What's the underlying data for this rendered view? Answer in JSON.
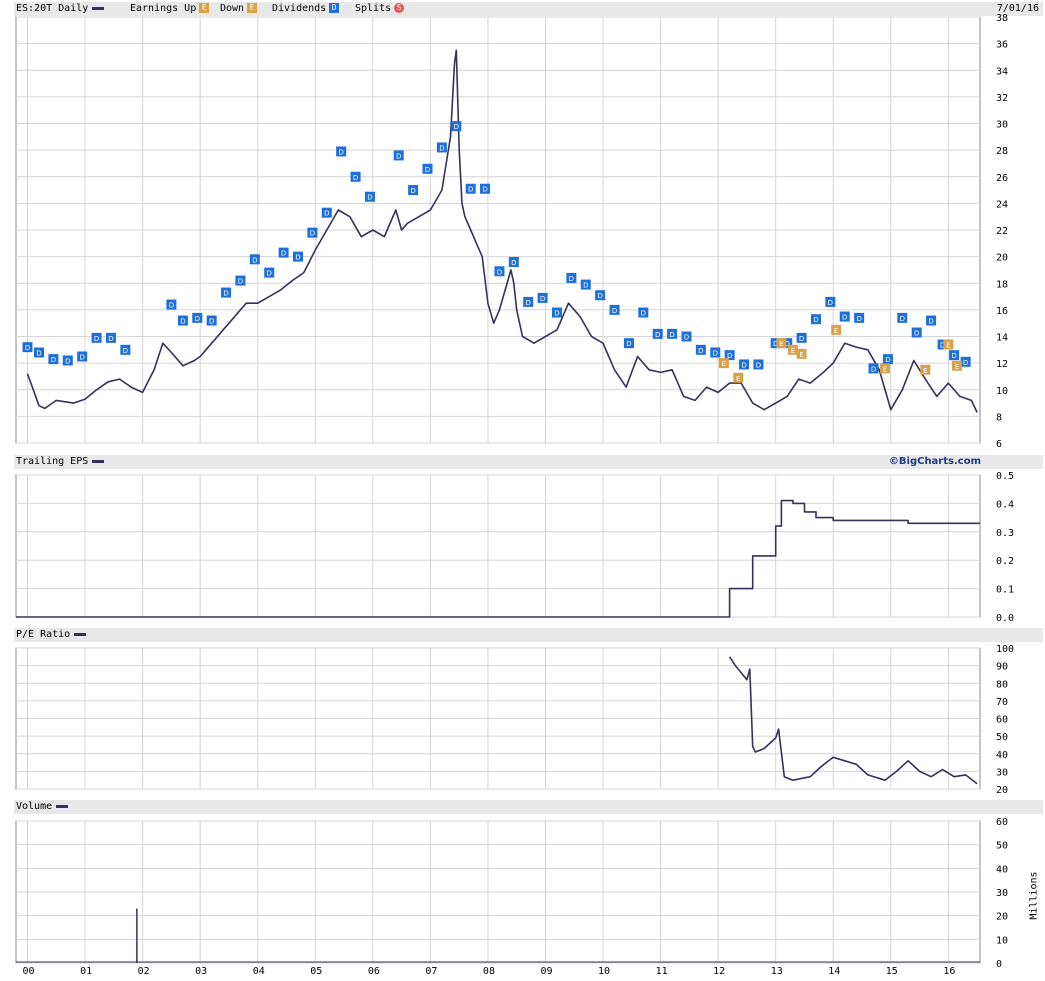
{
  "header": {
    "symbol_label": "ES:20T Daily",
    "earnings_up_label": "Earnings Up",
    "down_label": "Down",
    "dividends_label": "Dividends",
    "splits_label": "Splits",
    "date": "7/01/16",
    "earnings_icon_letter": "E",
    "dividend_icon_letter": "D",
    "split_icon_letter": "S"
  },
  "panels": {
    "eps_title": "Trailing EPS",
    "pe_title": "P/E Ratio",
    "volume_title": "Volume",
    "brand": "©BigCharts.com",
    "volume_unit": "Millions"
  },
  "colors": {
    "line": "#33335a",
    "dividend_marker": "#1e6fd9",
    "earnings_marker": "#d9a24a",
    "split_marker": "#e05555",
    "header_bg": "#e8e8e8",
    "grid": "#d4d4d4"
  },
  "chart_data": [
    {
      "type": "line",
      "title": "ES:20T Daily",
      "x_tick_labels": [
        "00",
        "01",
        "02",
        "03",
        "04",
        "05",
        "06",
        "07",
        "08",
        "09",
        "10",
        "11",
        "12",
        "13",
        "14",
        "15",
        "16"
      ],
      "y_ticks": [
        6,
        8,
        10,
        12,
        14,
        16,
        18,
        20,
        22,
        24,
        26,
        28,
        30,
        32,
        34,
        36,
        38
      ],
      "ylim": [
        6,
        38
      ],
      "xlim": [
        1999.8,
        2016.55
      ],
      "grid": true,
      "series": [
        {
          "x": [
            2000.0,
            2000.1,
            2000.2,
            2000.3,
            2000.5,
            2000.8,
            2001.0,
            2001.2,
            2001.4,
            2001.6,
            2001.8,
            2002.0,
            2002.2,
            2002.35,
            2002.5,
            2002.7,
            2002.9,
            2003.0,
            2003.2,
            2003.4,
            2003.6,
            2003.8,
            2004.0,
            2004.2,
            2004.4,
            2004.6,
            2004.8,
            2005.0,
            2005.2,
            2005.4,
            2005.6,
            2005.8,
            2006.0,
            2006.2,
            2006.4,
            2006.5,
            2006.6,
            2006.8,
            2007.0,
            2007.2,
            2007.35,
            2007.42,
            2007.45,
            2007.5,
            2007.55,
            2007.6,
            2007.7,
            2007.8,
            2007.9,
            2008.0,
            2008.1,
            2008.2,
            2008.3,
            2008.4,
            2008.45,
            2008.5,
            2008.6,
            2008.8,
            2009.0,
            2009.2,
            2009.4,
            2009.6,
            2009.8,
            2010.0,
            2010.2,
            2010.4,
            2010.6,
            2010.8,
            2011.0,
            2011.2,
            2011.4,
            2011.6,
            2011.8,
            2012.0,
            2012.2,
            2012.4,
            2012.6,
            2012.8,
            2013.0,
            2013.2,
            2013.4,
            2013.6,
            2013.8,
            2014.0,
            2014.2,
            2014.4,
            2014.6,
            2014.8,
            2015.0,
            2015.2,
            2015.4,
            2015.6,
            2015.8,
            2016.0,
            2016.2,
            2016.4,
            2016.5
          ],
          "y": [
            11.2,
            10.0,
            8.8,
            8.6,
            9.2,
            9.0,
            9.3,
            10.0,
            10.6,
            10.8,
            10.2,
            9.8,
            11.5,
            13.5,
            12.8,
            11.8,
            12.2,
            12.5,
            13.5,
            14.5,
            15.5,
            16.5,
            16.5,
            17.0,
            17.5,
            18.2,
            18.8,
            20.5,
            22.0,
            23.5,
            23.0,
            21.5,
            22.0,
            21.5,
            23.5,
            22.0,
            22.5,
            23.0,
            23.5,
            25.0,
            29.0,
            34.5,
            35.5,
            28.0,
            24.0,
            23.0,
            22.0,
            21.0,
            20.0,
            16.5,
            15.0,
            16.0,
            17.5,
            19.0,
            18.0,
            16.0,
            14.0,
            13.5,
            14.0,
            14.5,
            16.5,
            15.5,
            14.0,
            13.5,
            11.5,
            10.2,
            12.5,
            11.5,
            11.3,
            11.5,
            9.5,
            9.2,
            10.2,
            9.8,
            10.5,
            10.5,
            9.0,
            8.5,
            9.0,
            9.5,
            10.8,
            10.5,
            11.2,
            12.0,
            13.5,
            13.2,
            13.0,
            11.5,
            8.5,
            10.0,
            12.2,
            10.8,
            9.5,
            10.5,
            9.5,
            9.2,
            8.3
          ]
        }
      ]
    },
    {
      "type": "line",
      "title": "Trailing EPS",
      "y_ticks": [
        0.0,
        0.1,
        0.2,
        0.3,
        0.4,
        0.5
      ],
      "ylim": [
        0.0,
        0.5
      ],
      "xlim": [
        1999.8,
        2016.55
      ],
      "grid": true,
      "series": [
        {
          "x": [
            1999.8,
            2012.2,
            2012.2,
            2012.6,
            2012.6,
            2013.0,
            2013.0,
            2013.1,
            2013.1,
            2013.3,
            2013.3,
            2013.5,
            2013.5,
            2013.7,
            2013.7,
            2014.0,
            2014.0,
            2015.0,
            2015.0,
            2015.3,
            2015.3,
            2016.55
          ],
          "y": [
            0.0,
            0.0,
            0.1,
            0.1,
            0.215,
            0.215,
            0.32,
            0.32,
            0.41,
            0.41,
            0.4,
            0.4,
            0.37,
            0.37,
            0.35,
            0.35,
            0.34,
            0.34,
            0.34,
            0.34,
            0.33,
            0.33
          ]
        }
      ]
    },
    {
      "type": "line",
      "title": "P/E Ratio",
      "y_ticks": [
        20,
        30,
        40,
        50,
        60,
        70,
        80,
        90,
        100
      ],
      "ylim": [
        20,
        100
      ],
      "xlim": [
        1999.8,
        2016.55
      ],
      "grid": true,
      "series": [
        {
          "x": [
            2012.2,
            2012.3,
            2012.4,
            2012.5,
            2012.55,
            2012.6,
            2012.65,
            2012.8,
            2013.0,
            2013.05,
            2013.15,
            2013.3,
            2013.6,
            2013.8,
            2014.0,
            2014.2,
            2014.4,
            2014.6,
            2014.9,
            2015.1,
            2015.3,
            2015.5,
            2015.7,
            2015.9,
            2016.1,
            2016.3,
            2016.5
          ],
          "y": [
            95,
            90,
            86,
            82,
            88,
            44,
            41,
            43,
            49,
            54,
            27,
            25,
            27,
            33,
            38,
            36,
            34,
            28,
            25,
            30,
            36,
            30,
            27,
            31,
            27,
            28,
            23
          ]
        }
      ]
    },
    {
      "type": "bar",
      "title": "Volume",
      "y_ticks": [
        0,
        10,
        20,
        30,
        40,
        50,
        60
      ],
      "ylim": [
        0,
        60
      ],
      "xlim": [
        1999.8,
        2016.55
      ],
      "ylabel": "Millions",
      "grid": true,
      "series": [
        {
          "x": [
            2001.9
          ],
          "y": [
            23
          ]
        }
      ]
    }
  ],
  "markers": {
    "dividends": [
      [
        2000.0,
        13.2
      ],
      [
        2000.2,
        12.8
      ],
      [
        2000.45,
        12.3
      ],
      [
        2000.7,
        12.2
      ],
      [
        2000.95,
        12.5
      ],
      [
        2001.2,
        13.9
      ],
      [
        2001.45,
        13.9
      ],
      [
        2001.7,
        13.0
      ],
      [
        2002.5,
        16.4
      ],
      [
        2002.7,
        15.2
      ],
      [
        2002.95,
        15.4
      ],
      [
        2003.2,
        15.2
      ],
      [
        2003.45,
        17.3
      ],
      [
        2003.7,
        18.2
      ],
      [
        2003.95,
        19.8
      ],
      [
        2004.2,
        18.8
      ],
      [
        2004.45,
        20.3
      ],
      [
        2004.7,
        20.0
      ],
      [
        2004.95,
        21.8
      ],
      [
        2005.2,
        23.3
      ],
      [
        2005.45,
        27.9
      ],
      [
        2005.7,
        26.0
      ],
      [
        2005.95,
        24.5
      ],
      [
        2006.45,
        27.6
      ],
      [
        2006.7,
        25.0
      ],
      [
        2006.95,
        26.6
      ],
      [
        2007.2,
        28.2
      ],
      [
        2007.45,
        29.8
      ],
      [
        2007.7,
        25.1
      ],
      [
        2007.95,
        25.1
      ],
      [
        2008.2,
        18.9
      ],
      [
        2008.45,
        19.6
      ],
      [
        2008.7,
        16.6
      ],
      [
        2008.95,
        16.9
      ],
      [
        2009.2,
        15.8
      ],
      [
        2009.45,
        18.4
      ],
      [
        2009.7,
        17.9
      ],
      [
        2009.95,
        17.1
      ],
      [
        2010.2,
        16.0
      ],
      [
        2010.45,
        13.5
      ],
      [
        2010.7,
        15.8
      ],
      [
        2010.95,
        14.2
      ],
      [
        2011.2,
        14.2
      ],
      [
        2011.45,
        14.0
      ],
      [
        2011.7,
        13.0
      ],
      [
        2011.95,
        12.8
      ],
      [
        2012.2,
        12.6
      ],
      [
        2012.45,
        11.9
      ],
      [
        2012.7,
        11.9
      ],
      [
        2013.0,
        13.5
      ],
      [
        2013.2,
        13.5
      ],
      [
        2013.45,
        13.9
      ],
      [
        2013.7,
        15.3
      ],
      [
        2013.95,
        16.6
      ],
      [
        2014.2,
        15.5
      ],
      [
        2014.45,
        15.4
      ],
      [
        2014.7,
        11.6
      ],
      [
        2014.95,
        12.3
      ],
      [
        2015.2,
        15.4
      ],
      [
        2015.45,
        14.3
      ],
      [
        2015.7,
        15.2
      ],
      [
        2015.9,
        13.4
      ],
      [
        2016.1,
        12.6
      ],
      [
        2016.3,
        12.1
      ]
    ],
    "earnings": [
      [
        2012.1,
        12.0
      ],
      [
        2012.35,
        10.9
      ],
      [
        2013.1,
        13.5
      ],
      [
        2013.3,
        13.0
      ],
      [
        2013.45,
        12.7
      ],
      [
        2014.05,
        14.5
      ],
      [
        2014.9,
        11.6
      ],
      [
        2015.6,
        11.5
      ],
      [
        2016.0,
        13.4
      ],
      [
        2016.15,
        11.8
      ]
    ]
  }
}
